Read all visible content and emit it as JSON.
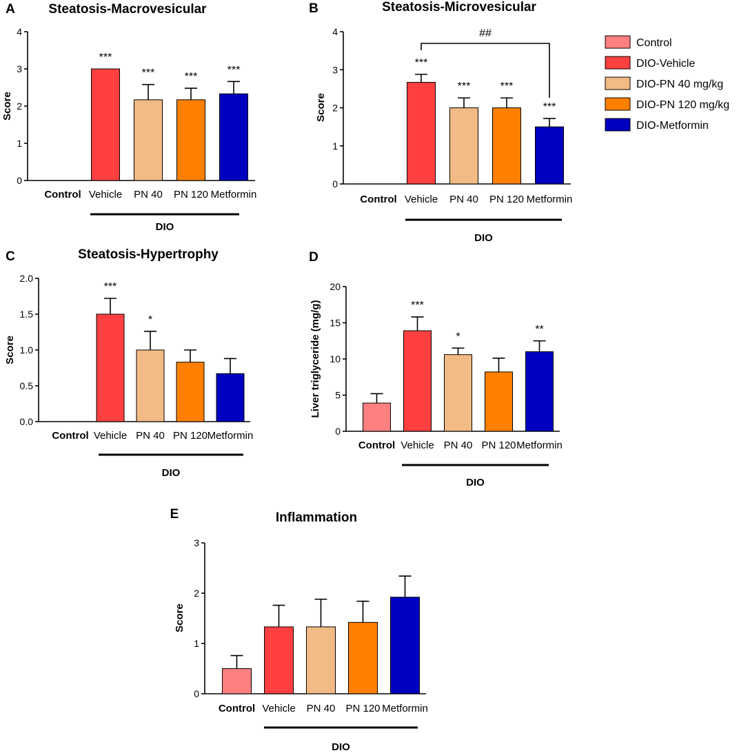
{
  "legend": [
    {
      "label": "Control",
      "color": "#ff8080"
    },
    {
      "label": "DIO-Vehicle",
      "color": "#ff4040"
    },
    {
      "label": "DIO-PN 40 mg/kg",
      "color": "#f2ba84"
    },
    {
      "label": "DIO-PN 120 mg/kg",
      "color": "#ff8000"
    },
    {
      "label": "DIO-Metformin",
      "color": "#0000c0"
    }
  ],
  "chart_data": [
    {
      "panel": "A",
      "type": "bar",
      "title": "Steatosis-Macrovesicular",
      "ylabel": "Score",
      "ylim": [
        0,
        4
      ],
      "yticks": [
        "0",
        "1",
        "2",
        "3",
        "4"
      ],
      "categories": [
        "Control",
        "Vehicle",
        "PN 40",
        "PN 120",
        "Metformin"
      ],
      "values": [
        0,
        3.0,
        2.17,
        2.17,
        2.33
      ],
      "errors": [
        0,
        0,
        0.41,
        0.31,
        0.33
      ],
      "significance": [
        "",
        "***",
        "***",
        "***",
        "***"
      ],
      "group_label": "DIO"
    },
    {
      "panel": "B",
      "type": "bar",
      "title": "Steatosis-Microvesicular",
      "ylabel": "Score",
      "ylim": [
        0,
        4
      ],
      "yticks": [
        "0",
        "1",
        "2",
        "3",
        "4"
      ],
      "categories": [
        "Control",
        "Vehicle",
        "PN 40",
        "PN 120",
        "Metformin"
      ],
      "values": [
        0,
        2.67,
        2.0,
        2.0,
        1.5
      ],
      "errors": [
        0,
        0.21,
        0.26,
        0.26,
        0.22
      ],
      "significance": [
        "",
        "***",
        "***",
        "***",
        "***"
      ],
      "bracket": {
        "from": "Vehicle",
        "to": "Metformin",
        "label": "##"
      },
      "group_label": "DIO"
    },
    {
      "panel": "C",
      "type": "bar",
      "title": "Steatosis-Hypertrophy",
      "ylabel": "Score",
      "ylim": [
        0,
        2
      ],
      "yticks": [
        "0.0",
        "0.5",
        "1.0",
        "1.5",
        "2.0"
      ],
      "categories": [
        "Control",
        "Vehicle",
        "PN 40",
        "PN 120",
        "Metformin"
      ],
      "values": [
        0,
        1.5,
        1.0,
        0.83,
        0.67
      ],
      "errors": [
        0,
        0.22,
        0.26,
        0.17,
        0.21
      ],
      "significance": [
        "",
        "***",
        "*",
        "",
        ""
      ],
      "group_label": "DIO"
    },
    {
      "panel": "D",
      "type": "bar",
      "title": "",
      "ylabel": "Liver triglyceride (mg/g)",
      "ylim": [
        0,
        20
      ],
      "yticks": [
        "0",
        "5",
        "10",
        "15",
        "20"
      ],
      "categories": [
        "Control",
        "Vehicle",
        "PN 40",
        "PN 120",
        "Metformin"
      ],
      "values": [
        3.9,
        13.9,
        10.6,
        8.2,
        11.0
      ],
      "errors": [
        1.3,
        1.9,
        0.9,
        1.9,
        1.5
      ],
      "significance": [
        "",
        "***",
        "*",
        "",
        "**"
      ],
      "group_label": "DIO"
    },
    {
      "panel": "E",
      "type": "bar",
      "title": "Inflammation",
      "ylabel": "Score",
      "ylim": [
        0,
        3
      ],
      "yticks": [
        "0",
        "1",
        "2",
        "3"
      ],
      "categories": [
        "Control",
        "Vehicle",
        "PN 40",
        "PN 120",
        "Metformin"
      ],
      "values": [
        0.5,
        1.33,
        1.33,
        1.42,
        1.92
      ],
      "errors": [
        0.26,
        0.43,
        0.55,
        0.42,
        0.42
      ],
      "significance": [
        "",
        "",
        "",
        "",
        ""
      ],
      "group_label": "DIO"
    }
  ]
}
